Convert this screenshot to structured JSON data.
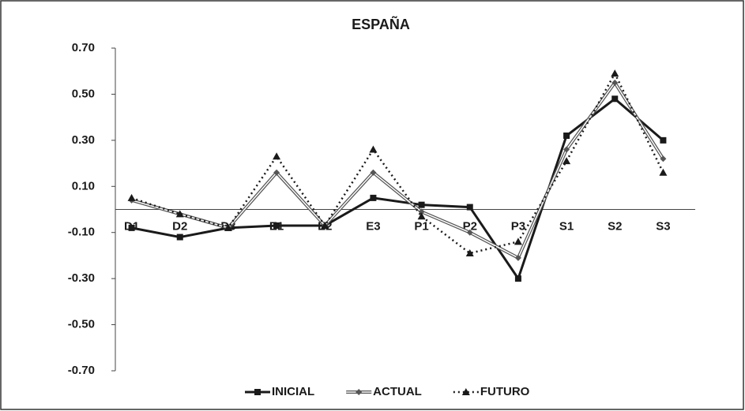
{
  "chart_data": {
    "type": "line",
    "title": "ESPAÑA",
    "categories": [
      "D1",
      "D2",
      "D3",
      "E1",
      "E2",
      "E3",
      "P1",
      "P2",
      "P3",
      "S1",
      "S2",
      "S3"
    ],
    "series": [
      {
        "name": "INICIAL",
        "color": "#1a1a1a",
        "marker": "square",
        "line_style": "solid",
        "values": [
          -0.08,
          -0.12,
          -0.08,
          -0.07,
          -0.07,
          0.05,
          0.02,
          0.01,
          -0.3,
          0.32,
          0.48,
          0.3
        ]
      },
      {
        "name": "ACTUAL",
        "color": "#555555",
        "marker": "diamond",
        "line_style": "double",
        "values": [
          0.04,
          -0.02,
          -0.08,
          0.16,
          -0.07,
          0.16,
          -0.01,
          -0.1,
          -0.21,
          0.26,
          0.55,
          0.22
        ]
      },
      {
        "name": "FUTURO",
        "color": "#1a1a1a",
        "marker": "triangle",
        "line_style": "dotted",
        "values": [
          0.05,
          -0.02,
          -0.08,
          0.23,
          -0.07,
          0.26,
          -0.03,
          -0.19,
          -0.14,
          0.21,
          0.59,
          0.16
        ]
      }
    ],
    "ylim": [
      -0.7,
      0.7
    ],
    "yticks": [
      {
        "value": -0.7,
        "label": "-0.70"
      },
      {
        "value": -0.5,
        "label": "-0.50"
      },
      {
        "value": -0.3,
        "label": "-0.30"
      },
      {
        "value": -0.1,
        "label": "-0.10"
      },
      {
        "value": 0.1,
        "label": "0.10"
      },
      {
        "value": 0.3,
        "label": "0.30"
      },
      {
        "value": 0.5,
        "label": "0.50"
      },
      {
        "value": 0.7,
        "label": "0.70"
      }
    ],
    "grid": false,
    "legend": "bottom"
  }
}
